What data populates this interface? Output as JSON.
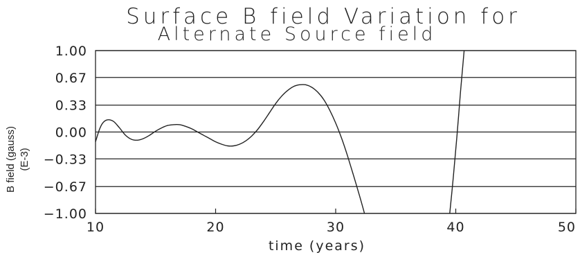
{
  "chart_data": {
    "type": "line",
    "title_line1": "Surface B field Variation for",
    "title_line2": "Alternate Source field",
    "xlabel": "time (years)",
    "ylabel_line1": "B field (gauss)",
    "ylabel_line2": "(E-3)",
    "xlim": [
      10,
      50
    ],
    "ylim": [
      -1.0,
      1.0
    ],
    "x_ticks": [
      10,
      20,
      30,
      40,
      50
    ],
    "x_tick_labels": [
      "10",
      "20",
      "30",
      "40",
      "50"
    ],
    "y_ticks": [
      1.0,
      0.67,
      0.33,
      0.0,
      -0.33,
      -0.67,
      -1.0
    ],
    "y_tick_labels": [
      "1.00",
      "0.67",
      "0.33",
      "0.00",
      "−0.33",
      "−0.67",
      "−1.00"
    ],
    "grid": "horizontal",
    "series": [
      {
        "x": [
          10,
          10.3,
          10.6,
          11,
          11.5,
          12,
          12.5,
          13,
          13.5,
          14,
          14.5,
          15,
          15.5,
          16,
          16.5,
          17,
          17.5,
          18,
          18.5,
          19,
          19.5,
          20,
          20.5,
          21,
          21.5,
          22,
          22.5,
          23,
          23.5,
          24,
          24.5,
          25,
          25.5,
          26,
          26.5,
          27,
          27.5,
          28,
          28.5,
          29,
          29.5,
          30,
          30.5,
          31,
          31.5,
          32,
          32.4
        ],
        "y": [
          -0.12,
          0.02,
          0.11,
          0.15,
          0.13,
          0.05,
          -0.04,
          -0.09,
          -0.1,
          -0.08,
          -0.04,
          0.01,
          0.05,
          0.08,
          0.09,
          0.09,
          0.07,
          0.04,
          0.0,
          -0.04,
          -0.08,
          -0.12,
          -0.15,
          -0.17,
          -0.17,
          -0.15,
          -0.11,
          -0.05,
          0.03,
          0.13,
          0.24,
          0.35,
          0.44,
          0.51,
          0.56,
          0.58,
          0.58,
          0.55,
          0.49,
          0.4,
          0.27,
          0.11,
          -0.08,
          -0.3,
          -0.54,
          -0.79,
          -1.0
        ]
      },
      {
        "x": [
          39.5,
          39.8,
          40.1,
          40.4,
          40.7
        ],
        "y": [
          -1.0,
          -0.55,
          -0.05,
          0.5,
          1.0
        ]
      }
    ]
  }
}
